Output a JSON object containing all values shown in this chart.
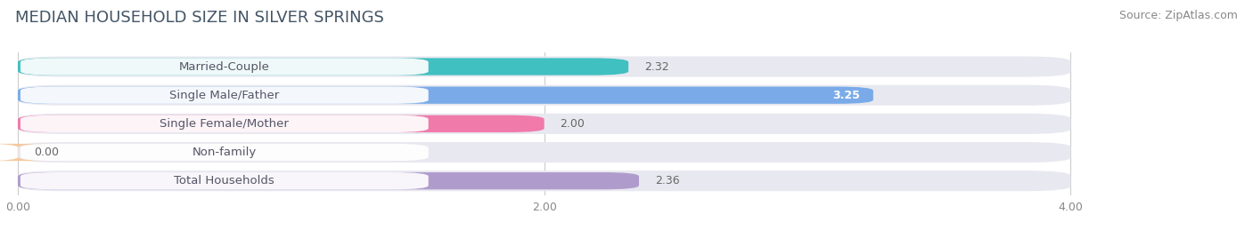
{
  "title": "MEDIAN HOUSEHOLD SIZE IN SILVER SPRINGS",
  "source": "Source: ZipAtlas.com",
  "categories": [
    "Married-Couple",
    "Single Male/Father",
    "Single Female/Mother",
    "Non-family",
    "Total Households"
  ],
  "values": [
    2.32,
    3.25,
    2.0,
    0.0,
    2.36
  ],
  "bar_colors": [
    "#40c0c0",
    "#7aabe8",
    "#f07aaa",
    "#f5c89a",
    "#b09ccc"
  ],
  "bar_bg_color": "#e8e8f0",
  "xlim_max": 4.0,
  "xticks": [
    0.0,
    2.0,
    4.0
  ],
  "xtick_labels": [
    "0.00",
    "2.00",
    "4.00"
  ],
  "title_fontsize": 13,
  "source_fontsize": 9,
  "label_fontsize": 9.5,
  "value_fontsize": 9,
  "background_color": "#ffffff",
  "label_box_color": "#ffffff",
  "label_text_color": "#555566",
  "value_text_color": "#666666",
  "title_color": "#445566"
}
